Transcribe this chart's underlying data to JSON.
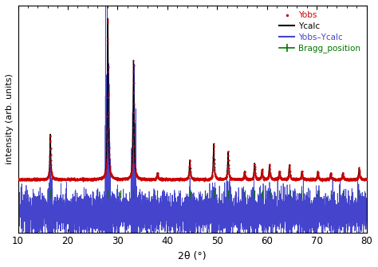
{
  "title": "",
  "xlabel": "2θ (°)",
  "ylabel": "intensity (arb. units)",
  "xlim": [
    10,
    80
  ],
  "background_color": "#ffffff",
  "bragg_positions": [
    16.5,
    28.0,
    30.5,
    33.2,
    38.0,
    44.5,
    47.5,
    49.3,
    52.2,
    55.5,
    57.5,
    59.0,
    60.5,
    62.5,
    64.5,
    67.0,
    70.2,
    72.8,
    75.2,
    78.5
  ],
  "peak_positions": [
    16.5,
    28.05,
    33.2,
    38.0,
    44.5,
    49.3,
    52.2,
    55.5,
    57.5,
    59.0,
    60.5,
    62.5,
    64.5,
    67.0,
    70.2,
    72.8,
    75.2,
    78.5
  ],
  "peak_heights": [
    0.28,
    1.0,
    0.74,
    0.04,
    0.12,
    0.22,
    0.17,
    0.05,
    0.1,
    0.06,
    0.09,
    0.05,
    0.09,
    0.05,
    0.05,
    0.04,
    0.04,
    0.07
  ],
  "fwhm": 0.22,
  "noise_scale": 0.003,
  "diff_noise_scale": 0.004,
  "background_level": 0.008,
  "legend_labels": [
    "Yobs",
    "Ycalc",
    "Yobs–Ycalc",
    "Bragg_position"
  ],
  "colors": {
    "yobs": "#cc0000",
    "ycalc": "#000000",
    "diff": "#4444cc",
    "bragg": "#007700"
  },
  "xticks": [
    10,
    20,
    30,
    40,
    50,
    60,
    70,
    80
  ]
}
